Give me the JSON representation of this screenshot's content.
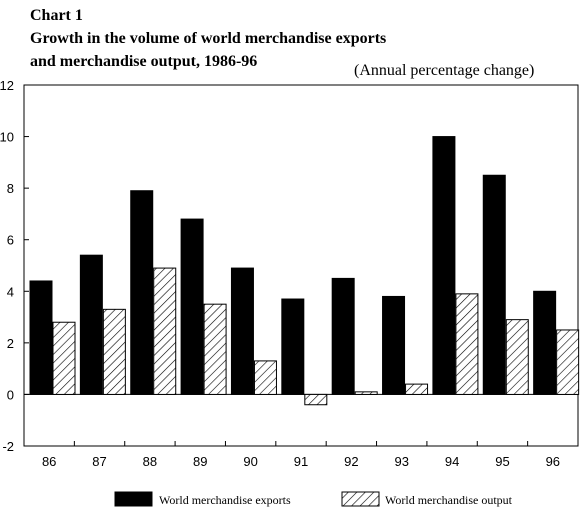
{
  "chart_data": {
    "type": "bar",
    "title_lines": [
      "Chart 1",
      "Growth in the volume of world merchandise exports",
      "and merchandise output, 1986-96"
    ],
    "units_label": "(Annual percentage change)",
    "categories": [
      "86",
      "87",
      "88",
      "89",
      "90",
      "91",
      "92",
      "93",
      "94",
      "95",
      "96"
    ],
    "series": [
      {
        "name": "World merchandise exports",
        "fill": "solid",
        "color": "#000000",
        "values": [
          4.4,
          5.4,
          7.9,
          6.8,
          4.9,
          3.7,
          4.5,
          3.8,
          10.0,
          8.5,
          4.0
        ]
      },
      {
        "name": "World merchandise output",
        "fill": "hatched",
        "color": "#000000",
        "values": [
          2.8,
          3.3,
          4.9,
          3.5,
          1.3,
          -0.4,
          0.1,
          0.4,
          3.9,
          2.9,
          2.5
        ]
      }
    ],
    "ylim": [
      -2,
      12
    ],
    "yticks": [
      -2,
      0,
      2,
      4,
      6,
      8,
      10,
      12
    ],
    "grid": false,
    "legend_position": "bottom"
  }
}
